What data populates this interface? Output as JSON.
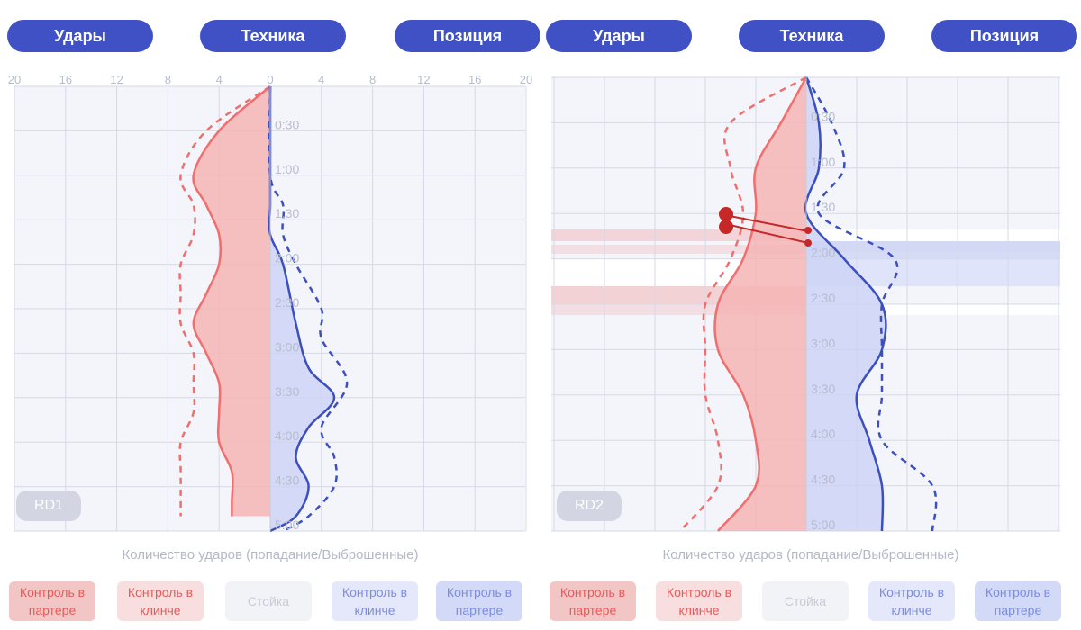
{
  "colors": {
    "tab_bg": "#3f51c4",
    "red_line": "#ef6f6f",
    "red_fill": "#f4b5b5",
    "blue_line": "#3b4fc0",
    "blue_fill": "#cdd4f4",
    "grid": "#d6d8e6",
    "annotation": "#c62828"
  },
  "panels": [
    {
      "id": "rd1",
      "tabs": [
        "Удары",
        "Техника",
        "Позиция"
      ],
      "badge": "RD1",
      "axis_caption": "Количество ударов (попадание/Выброшенные)",
      "legend": [
        {
          "label": "Контроль в партере",
          "bg": "#f3c6c6",
          "color": "#e85a5a"
        },
        {
          "label": "Контроль в клинче",
          "bg": "#f8dede",
          "color": "#e85a5a"
        },
        {
          "label": "Стойка",
          "bg": "#f2f3f7",
          "color": "#c8cbd6"
        },
        {
          "label": "Контроль в клинче",
          "bg": "#e4e8fa",
          "color": "#7d8ce0"
        },
        {
          "label": "Контроль в партере",
          "bg": "#d3daf7",
          "color": "#7d8ce0"
        }
      ]
    },
    {
      "id": "rd2",
      "tabs": [
        "Удары",
        "Техника",
        "Позиция"
      ],
      "badge": "RD2",
      "axis_caption": "Количество ударов (попадание/Выброшенные)",
      "legend": [
        {
          "label": "Контроль в партере",
          "bg": "#f3c6c6",
          "color": "#e85a5a"
        },
        {
          "label": "Контроль в клинче",
          "bg": "#f8dede",
          "color": "#e85a5a"
        },
        {
          "label": "Стойка",
          "bg": "#f2f3f7",
          "color": "#c8cbd6"
        },
        {
          "label": "Контроль в клинче",
          "bg": "#e4e8fa",
          "color": "#7d8ce0"
        },
        {
          "label": "Контроль в партере",
          "bg": "#d3daf7",
          "color": "#7d8ce0"
        }
      ]
    }
  ],
  "chart_data": [
    {
      "type": "area",
      "title": "",
      "xlabel": "Количество ударов (попадание/Выброшенные)",
      "ylabel": "",
      "x_ticks": [
        "20",
        "16",
        "12",
        "8",
        "4",
        "0",
        "4",
        "8",
        "12",
        "16",
        "20"
      ],
      "xlim": [
        -20,
        20
      ],
      "y_ticks": [
        "0:30",
        "1:00",
        "1:30",
        "2:00",
        "2:30",
        "3:00",
        "3:30",
        "4:00",
        "4:30",
        "5:00"
      ],
      "ylim": [
        0,
        300
      ],
      "grid": true,
      "series": [
        {
          "side": "left",
          "style": "solid",
          "points": [
            [
              0,
              0
            ],
            [
              30,
              -4
            ],
            [
              60,
              -6
            ],
            [
              80,
              -5
            ],
            [
              100,
              -4
            ],
            [
              120,
              -4
            ],
            [
              140,
              -5
            ],
            [
              160,
              -6
            ],
            [
              180,
              -5
            ],
            [
              200,
              -4
            ],
            [
              220,
              -4
            ],
            [
              240,
              -4
            ],
            [
              260,
              -3
            ],
            [
              280,
              -3
            ],
            [
              290,
              -3
            ]
          ]
        },
        {
          "side": "left",
          "style": "dashed",
          "points": [
            [
              0,
              0
            ],
            [
              30,
              -5
            ],
            [
              60,
              -7
            ],
            [
              80,
              -6
            ],
            [
              100,
              -6
            ],
            [
              120,
              -7
            ],
            [
              140,
              -7
            ],
            [
              160,
              -7
            ],
            [
              180,
              -6
            ],
            [
              200,
              -6
            ],
            [
              220,
              -6
            ],
            [
              240,
              -7
            ],
            [
              260,
              -7
            ],
            [
              280,
              -7
            ],
            [
              290,
              -7
            ]
          ]
        },
        {
          "side": "right",
          "style": "solid",
          "points": [
            [
              0,
              0
            ],
            [
              60,
              0
            ],
            [
              80,
              0
            ],
            [
              100,
              0
            ],
            [
              120,
              1
            ],
            [
              160,
              2
            ],
            [
              190,
              3
            ],
            [
              210,
              5
            ],
            [
              230,
              3
            ],
            [
              250,
              2
            ],
            [
              270,
              3
            ],
            [
              290,
              2
            ],
            [
              300,
              0
            ]
          ]
        },
        {
          "side": "right",
          "style": "dashed",
          "points": [
            [
              0,
              0
            ],
            [
              60,
              0
            ],
            [
              80,
              1
            ],
            [
              100,
              1
            ],
            [
              120,
              2
            ],
            [
              150,
              4
            ],
            [
              170,
              4
            ],
            [
              200,
              6
            ],
            [
              230,
              4
            ],
            [
              250,
              5
            ],
            [
              270,
              5
            ],
            [
              290,
              3
            ],
            [
              300,
              1
            ]
          ]
        }
      ]
    },
    {
      "type": "area",
      "title": "",
      "xlabel": "Количество ударов (попадание/Выброшенные)",
      "ylabel": "",
      "y_ticks": [
        "0:30",
        "1:00",
        "1:30",
        "2:00",
        "2:30",
        "3:00",
        "3:30",
        "4:00",
        "4:30",
        "5:00"
      ],
      "ylim": [
        0,
        300
      ],
      "grid": true,
      "series": [
        {
          "side": "left",
          "style": "solid",
          "points": [
            [
              0,
              0
            ],
            [
              30,
              -2
            ],
            [
              60,
              -4
            ],
            [
              90,
              -4
            ],
            [
              120,
              -5
            ],
            [
              150,
              -7
            ],
            [
              180,
              -7
            ],
            [
              210,
              -5
            ],
            [
              240,
              -4
            ],
            [
              270,
              -4
            ],
            [
              300,
              -7
            ]
          ]
        },
        {
          "side": "left",
          "style": "dashed",
          "points": [
            [
              0,
              0
            ],
            [
              30,
              -6
            ],
            [
              60,
              -6
            ],
            [
              90,
              -5
            ],
            [
              120,
              -6
            ],
            [
              150,
              -8
            ],
            [
              180,
              -8
            ],
            [
              210,
              -8
            ],
            [
              240,
              -7
            ],
            [
              270,
              -7
            ],
            [
              300,
              -10
            ]
          ]
        },
        {
          "side": "right",
          "style": "solid",
          "points": [
            [
              0,
              0
            ],
            [
              30,
              1
            ],
            [
              60,
              1
            ],
            [
              90,
              0
            ],
            [
              120,
              3
            ],
            [
              150,
              6
            ],
            [
              180,
              6
            ],
            [
              210,
              4
            ],
            [
              240,
              5
            ],
            [
              270,
              6
            ],
            [
              300,
              6
            ]
          ]
        },
        {
          "side": "right",
          "style": "dashed",
          "points": [
            [
              0,
              0
            ],
            [
              30,
              2
            ],
            [
              60,
              3
            ],
            [
              90,
              1
            ],
            [
              120,
              7
            ],
            [
              150,
              6
            ],
            [
              180,
              6
            ],
            [
              210,
              6
            ],
            [
              240,
              6
            ],
            [
              270,
              10
            ],
            [
              300,
              10
            ]
          ]
        }
      ]
    }
  ]
}
